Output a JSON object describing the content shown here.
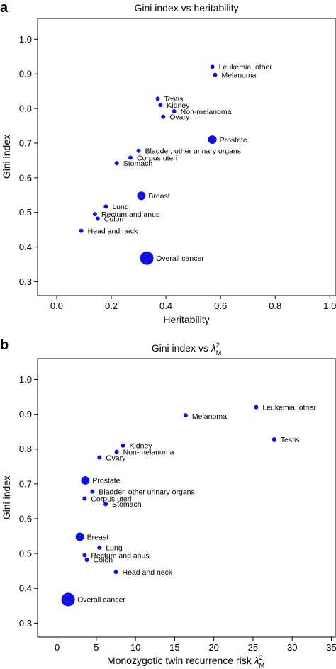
{
  "chart_data": [
    {
      "type": "scatter",
      "panel": "a",
      "title": "Gini index vs heritability",
      "xlabel": "Heritability",
      "ylabel": "Gini index",
      "xlim": [
        -0.07,
        1.02
      ],
      "ylim": [
        0.26,
        1.06
      ],
      "xticks": [
        "0.0",
        "0.2",
        "0.4",
        "0.6",
        "0.8",
        "1.0"
      ],
      "yticks": [
        "0.3",
        "0.4",
        "0.5",
        "0.6",
        "0.7",
        "0.8",
        "0.9",
        "1.0"
      ],
      "grid": false,
      "point_color": "#1010e0",
      "points": [
        {
          "label": "Leukemia, other",
          "x": 0.57,
          "y": 0.92,
          "size": "small"
        },
        {
          "label": "Melanoma",
          "x": 0.58,
          "y": 0.897,
          "size": "small"
        },
        {
          "label": "Testis",
          "x": 0.37,
          "y": 0.828,
          "size": "small"
        },
        {
          "label": "Kidney",
          "x": 0.38,
          "y": 0.81,
          "size": "small"
        },
        {
          "label": "Non-melanoma",
          "x": 0.43,
          "y": 0.792,
          "size": "small"
        },
        {
          "label": "Ovary",
          "x": 0.39,
          "y": 0.776,
          "size": "small"
        },
        {
          "label": "Prostate",
          "x": 0.57,
          "y": 0.71,
          "size": "medium"
        },
        {
          "label": "Bladder, other urinary organs",
          "x": 0.3,
          "y": 0.678,
          "size": "small"
        },
        {
          "label": "Corpus uteri",
          "x": 0.27,
          "y": 0.658,
          "size": "small"
        },
        {
          "label": "Stomach",
          "x": 0.22,
          "y": 0.642,
          "size": "small"
        },
        {
          "label": "Breast",
          "x": 0.31,
          "y": 0.548,
          "size": "medium"
        },
        {
          "label": "Lung",
          "x": 0.18,
          "y": 0.517,
          "size": "small"
        },
        {
          "label": "Rectum and anus",
          "x": 0.14,
          "y": 0.495,
          "size": "small"
        },
        {
          "label": "Colon",
          "x": 0.15,
          "y": 0.482,
          "size": "small"
        },
        {
          "label": "Head and neck",
          "x": 0.09,
          "y": 0.447,
          "size": "small"
        },
        {
          "label": "Overall cancer",
          "x": 0.33,
          "y": 0.368,
          "size": "large"
        }
      ]
    },
    {
      "type": "scatter",
      "panel": "b",
      "title": "Gini index vs λ²M",
      "title_main": "Gini index vs ",
      "title_symbol": "λ",
      "title_sup": "2",
      "title_sub": "M",
      "xlabel": "Monozygotic twin recurrence risk λ²M",
      "xlabel_main": "Monozygotic twin recurrence risk ",
      "xlabel_symbol": "λ",
      "xlabel_sup": "2",
      "xlabel_sub": "M",
      "ylabel": "Gini index",
      "xlim": [
        -2.5,
        35.5
      ],
      "ylim": [
        0.26,
        1.06
      ],
      "xticks": [
        "0",
        "5",
        "10",
        "15",
        "20",
        "25",
        "30",
        "35"
      ],
      "yticks": [
        "0.3",
        "0.4",
        "0.5",
        "0.6",
        "0.7",
        "0.8",
        "0.9",
        "1.0"
      ],
      "grid": false,
      "point_color": "#1010e0",
      "points": [
        {
          "label": "Leukemia, other",
          "x": 25.4,
          "y": 0.92,
          "size": "small"
        },
        {
          "label": "Melanoma",
          "x": 16.4,
          "y": 0.897,
          "size": "small"
        },
        {
          "label": "Testis",
          "x": 27.7,
          "y": 0.828,
          "size": "small"
        },
        {
          "label": "Kidney",
          "x": 8.4,
          "y": 0.81,
          "size": "small"
        },
        {
          "label": "Non-melanoma",
          "x": 7.6,
          "y": 0.792,
          "size": "small"
        },
        {
          "label": "Ovary",
          "x": 5.4,
          "y": 0.776,
          "size": "small"
        },
        {
          "label": "Prostate",
          "x": 3.6,
          "y": 0.71,
          "size": "medium"
        },
        {
          "label": "Bladder, other urinary organs",
          "x": 4.5,
          "y": 0.678,
          "size": "small"
        },
        {
          "label": "Corpus uteri",
          "x": 3.5,
          "y": 0.658,
          "size": "small"
        },
        {
          "label": "Stomach",
          "x": 6.2,
          "y": 0.642,
          "size": "small"
        },
        {
          "label": "Breast",
          "x": 2.9,
          "y": 0.548,
          "size": "medium"
        },
        {
          "label": "Lung",
          "x": 5.4,
          "y": 0.517,
          "size": "small"
        },
        {
          "label": "Rectum and anus",
          "x": 3.5,
          "y": 0.495,
          "size": "small"
        },
        {
          "label": "Colon",
          "x": 3.8,
          "y": 0.482,
          "size": "small"
        },
        {
          "label": "Head and neck",
          "x": 7.5,
          "y": 0.447,
          "size": "small"
        },
        {
          "label": "Overall cancer",
          "x": 1.4,
          "y": 0.368,
          "size": "large"
        }
      ]
    }
  ]
}
